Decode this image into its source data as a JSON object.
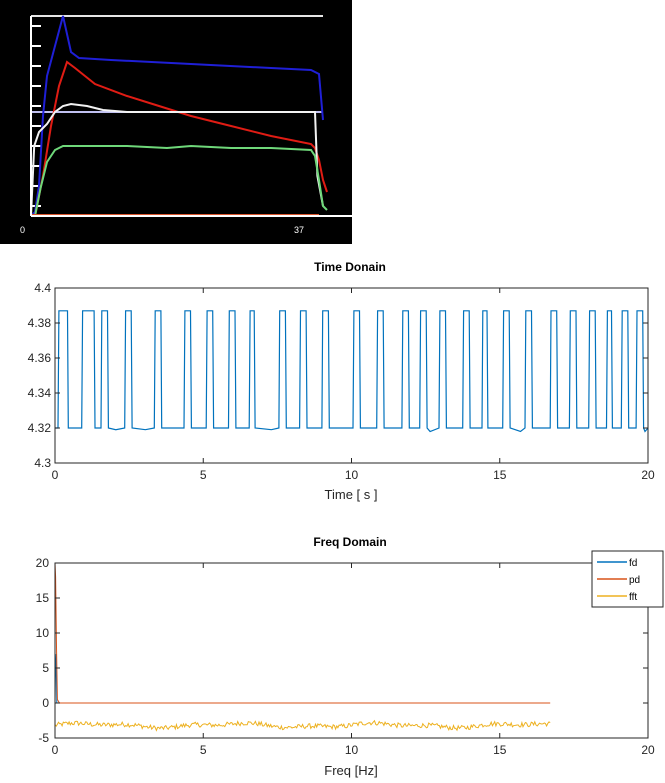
{
  "chart_data": [
    {
      "type": "line",
      "title": "",
      "background": "#000000",
      "x_ticks": [
        "0",
        "37"
      ],
      "xlim": [
        0,
        40
      ],
      "ylim": [
        0,
        100
      ],
      "grid": false,
      "series": [
        {
          "color": "#1f1fd6",
          "points": [
            [
              0,
              0
            ],
            [
              0.5,
              2
            ],
            [
              1,
              15
            ],
            [
              1.5,
              50
            ],
            [
              2,
              70
            ],
            [
              3,
              85
            ],
            [
              4,
              100
            ],
            [
              5,
              82
            ],
            [
              6,
              79
            ],
            [
              10,
              78
            ],
            [
              20,
              76
            ],
            [
              30,
              74
            ],
            [
              35,
              73
            ],
            [
              36,
              71
            ],
            [
              36.5,
              48
            ]
          ]
        },
        {
          "color": "#e01c14",
          "points": [
            [
              0.5,
              0
            ],
            [
              1.5,
              20
            ],
            [
              2.5,
              45
            ],
            [
              3.5,
              65
            ],
            [
              4.5,
              77
            ],
            [
              5.5,
              74
            ],
            [
              8,
              66
            ],
            [
              12,
              60
            ],
            [
              16,
              55
            ],
            [
              20,
              50
            ],
            [
              25,
              45
            ],
            [
              30,
              40
            ],
            [
              35,
              36
            ],
            [
              35.5,
              34
            ],
            [
              36,
              28
            ],
            [
              36.5,
              18
            ],
            [
              37,
              12
            ]
          ]
        },
        {
          "color": "#f2f2f2",
          "points": [
            [
              0,
              0
            ],
            [
              0.4,
              35
            ],
            [
              1,
              42
            ],
            [
              2,
              46
            ],
            [
              3,
              52
            ],
            [
              4,
              55
            ],
            [
              5,
              56
            ],
            [
              7,
              55
            ],
            [
              9,
              53
            ],
            [
              12,
              52
            ],
            [
              16,
              52
            ],
            [
              20,
              52
            ],
            [
              25,
              52
            ],
            [
              30,
              52
            ],
            [
              35,
              52
            ],
            [
              35.5,
              52
            ],
            [
              35.8,
              20
            ],
            [
              36.5,
              5
            ]
          ]
        },
        {
          "color": "#6fd87a",
          "points": [
            [
              0.5,
              0
            ],
            [
              1.2,
              14
            ],
            [
              2,
              27
            ],
            [
              3,
              33
            ],
            [
              4,
              35
            ],
            [
              8,
              35
            ],
            [
              12,
              35
            ],
            [
              17,
              34
            ],
            [
              20,
              35
            ],
            [
              25,
              34
            ],
            [
              30,
              34
            ],
            [
              35,
              33
            ],
            [
              35.5,
              30
            ],
            [
              36,
              18
            ],
            [
              36.5,
              5
            ],
            [
              37,
              3
            ]
          ]
        },
        {
          "color": "#d9542b",
          "points": [
            [
              0,
              0.5
            ],
            [
              36,
              0.5
            ]
          ]
        }
      ],
      "reference_lines": [
        {
          "color": "#e6e6e6",
          "y": 100
        },
        {
          "color": "#c0c0f0",
          "y": 52
        }
      ]
    },
    {
      "type": "line",
      "title": "Time Donain",
      "xlabel": "Time [ s ]",
      "ylabel": "",
      "xlim": [
        0,
        20
      ],
      "ylim": [
        4.3,
        4.4
      ],
      "x_ticks": [
        "0",
        "5",
        "10",
        "15",
        "20"
      ],
      "y_ticks": [
        "4.4",
        "4.38",
        "4.36",
        "4.34",
        "4.32",
        "4.3"
      ],
      "y_tick_values": [
        4.4,
        4.38,
        4.36,
        4.34,
        4.32,
        4.3
      ],
      "grid": false,
      "series": [
        {
          "color": "#0072bd",
          "low": 4.32,
          "high": 4.387,
          "pulses": [
            [
              0.1,
              0.45
            ],
            [
              0.9,
              1.35
            ],
            [
              1.55,
              1.8
            ],
            [
              2.35,
              2.6
            ],
            [
              3.35,
              3.6
            ],
            [
              4.35,
              4.6
            ],
            [
              5.1,
              5.35
            ],
            [
              5.85,
              6.1
            ],
            [
              6.55,
              6.75
            ],
            [
              7.55,
              7.8
            ],
            [
              8.25,
              8.5
            ],
            [
              9.0,
              9.25
            ],
            [
              10.05,
              10.3
            ],
            [
              10.85,
              11.1
            ],
            [
              11.7,
              11.95
            ],
            [
              12.3,
              12.55
            ],
            [
              12.95,
              13.2
            ],
            [
              13.75,
              14.0
            ],
            [
              14.4,
              14.6
            ],
            [
              15.1,
              15.35
            ],
            [
              15.85,
              16.1
            ],
            [
              16.7,
              16.95
            ],
            [
              17.35,
              17.6
            ],
            [
              18.0,
              18.25
            ],
            [
              18.6,
              18.8
            ],
            [
              19.1,
              19.35
            ],
            [
              19.6,
              19.85
            ]
          ],
          "baseline_dips": [
            [
              2.05,
              4.319
            ],
            [
              3.05,
              4.319
            ],
            [
              7.3,
              4.319
            ],
            [
              12.65,
              4.318
            ],
            [
              15.7,
              4.318
            ],
            [
              19.9,
              4.318
            ]
          ]
        }
      ]
    },
    {
      "type": "line",
      "title": "Freq Domain",
      "xlabel": "Freq [Hz]",
      "ylabel": "",
      "xlim": [
        0,
        20
      ],
      "ylim": [
        -5,
        20
      ],
      "x_ticks": [
        "0",
        "5",
        "10",
        "15",
        "20"
      ],
      "y_ticks": [
        "20",
        "15",
        "10",
        "5",
        "0",
        "-5"
      ],
      "y_tick_values": [
        20,
        15,
        10,
        5,
        0,
        -5
      ],
      "grid": false,
      "legend": "top-right",
      "series": [
        {
          "name": "fd",
          "color": "#0072bd",
          "points": [
            [
              0,
              0
            ],
            [
              0.02,
              5
            ],
            [
              0.04,
              7
            ],
            [
              0.06,
              0
            ]
          ]
        },
        {
          "name": "pd",
          "color": "#d95319",
          "points": [
            [
              0,
              20
            ],
            [
              0.02,
              18
            ],
            [
              0.05,
              8
            ],
            [
              0.08,
              0.5
            ],
            [
              0.15,
              0
            ],
            [
              16.7,
              0
            ]
          ]
        },
        {
          "name": "fft",
          "color": "#edb120",
          "x_range": [
            0,
            16.7
          ],
          "mean": -3.2,
          "noise": 0.35
        }
      ]
    }
  ]
}
